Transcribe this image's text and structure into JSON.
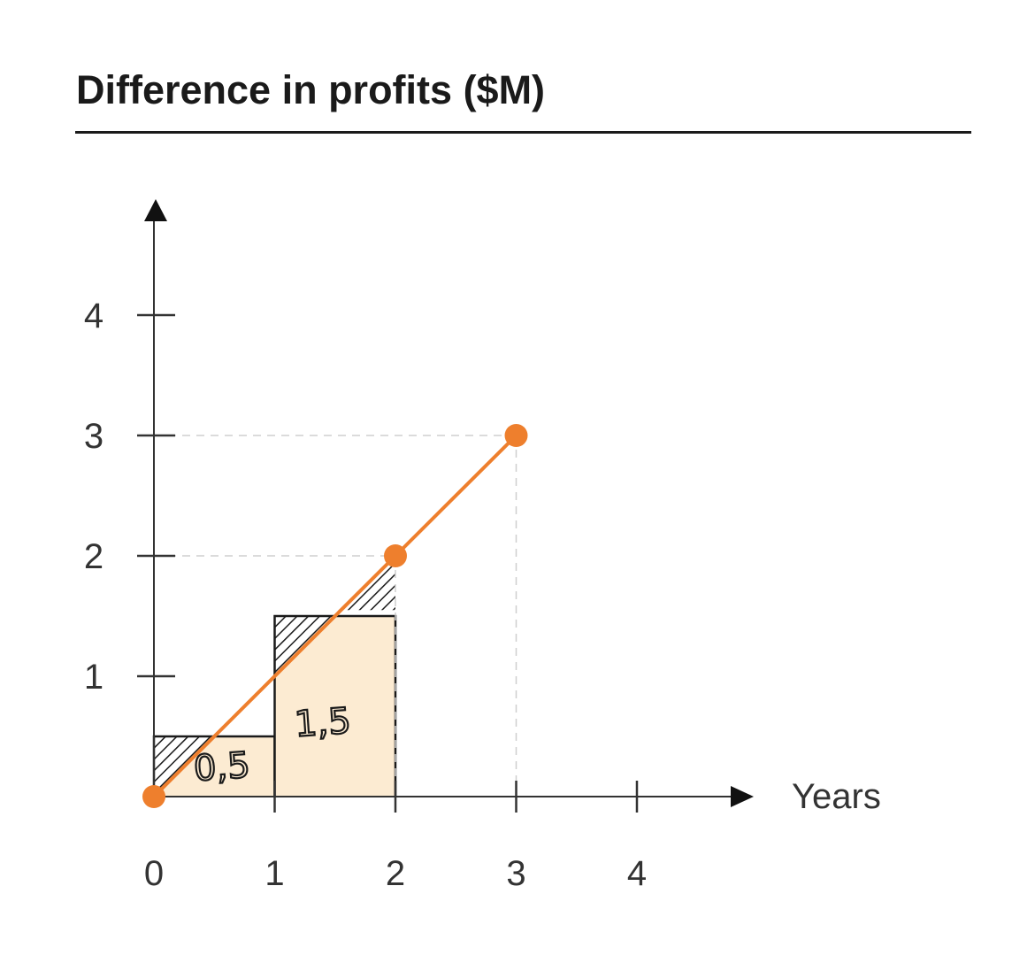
{
  "chart_data": {
    "type": "line",
    "title": "Difference in profits ($M)",
    "xlabel": "Years",
    "ylabel": "",
    "xlim": [
      0,
      4
    ],
    "ylim": [
      0,
      4
    ],
    "x_ticks": [
      "0",
      "1",
      "2",
      "3",
      "4"
    ],
    "y_ticks": [
      "1",
      "2",
      "3",
      "4"
    ],
    "series": [
      {
        "x": [
          0,
          2,
          3
        ],
        "y": [
          0,
          2,
          3
        ]
      }
    ],
    "rectangles": [
      {
        "x0": 0,
        "x1": 1,
        "height": 0.5,
        "label": "0,5"
      },
      {
        "x0": 1,
        "x1": 2,
        "height": 1.5,
        "label": "1,5"
      }
    ],
    "guides": [
      {
        "x": 2,
        "y": 2
      },
      {
        "x": 3,
        "y": 3
      }
    ],
    "colors": {
      "line": "#ee7f2d",
      "fill": "#fcebd2",
      "axis": "#333333",
      "guide": "#cfcfcf"
    }
  }
}
